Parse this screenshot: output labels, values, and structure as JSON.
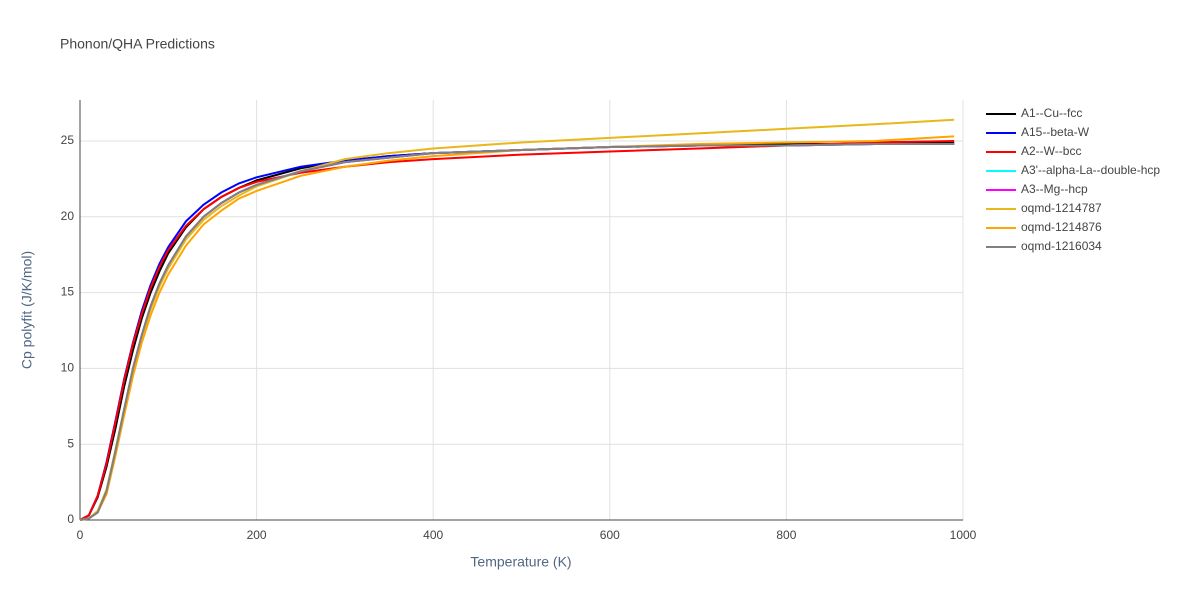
{
  "chart_data": {
    "type": "line",
    "title": "Phonon/QHA Predictions",
    "x_label": "Temperature (K)",
    "y_label": "Cp polyfit (J/K/mol)",
    "x": [
      0,
      10,
      20,
      30,
      40,
      50,
      60,
      70,
      80,
      90,
      100,
      120,
      140,
      160,
      180,
      200,
      250,
      300,
      350,
      400,
      500,
      600,
      700,
      800,
      900,
      990
    ],
    "xlim": [
      0,
      1000
    ],
    "xticks": [
      0,
      200,
      400,
      600,
      800,
      1000
    ],
    "ylim": [
      0,
      27.7
    ],
    "yticks": [
      0,
      5,
      10,
      15,
      20,
      25
    ],
    "grid": true,
    "series": [
      {
        "name": "A1--Cu--fcc",
        "color": "#000000",
        "values": [
          0,
          0.3,
          1.5,
          3.5,
          6.0,
          8.8,
          11.2,
          13.3,
          15.0,
          16.4,
          17.6,
          19.3,
          20.5,
          21.3,
          21.9,
          22.4,
          23.2,
          23.7,
          24.0,
          24.2,
          24.4,
          24.6,
          24.7,
          24.8,
          24.8,
          24.9
        ]
      },
      {
        "name": "A15--beta-W",
        "color": "#0000ff",
        "values": [
          0,
          0.3,
          1.6,
          3.8,
          6.5,
          9.3,
          11.7,
          13.8,
          15.5,
          16.9,
          18.0,
          19.7,
          20.8,
          21.6,
          22.2,
          22.6,
          23.3,
          23.7,
          24.0,
          24.2,
          24.4,
          24.6,
          24.7,
          24.7,
          24.8,
          24.8
        ]
      },
      {
        "name": "A2--W--bcc",
        "color": "#ff0000",
        "values": [
          0,
          0.3,
          1.6,
          3.7,
          6.4,
          9.2,
          11.6,
          13.6,
          15.3,
          16.7,
          17.8,
          19.4,
          20.5,
          21.3,
          21.9,
          22.3,
          22.9,
          23.3,
          23.6,
          23.8,
          24.1,
          24.3,
          24.5,
          24.7,
          24.9,
          25.0
        ]
      },
      {
        "name": "A3'--alpha-La--double-hcp",
        "color": "#00ffff",
        "values": [
          0,
          0.1,
          0.5,
          1.9,
          4.5,
          7.3,
          10.0,
          12.2,
          14.1,
          15.6,
          16.8,
          18.7,
          20.0,
          20.9,
          21.6,
          22.1,
          23.0,
          23.6,
          23.9,
          24.2,
          24.4,
          24.6,
          24.7,
          24.7,
          24.8,
          24.8
        ]
      },
      {
        "name": "A3--Mg--hcp",
        "color": "#ff00ff",
        "values": [
          0,
          0.1,
          0.5,
          1.9,
          4.5,
          7.3,
          10.0,
          12.2,
          14.1,
          15.6,
          16.8,
          18.7,
          20.0,
          20.9,
          21.6,
          22.1,
          23.0,
          23.6,
          23.9,
          24.2,
          24.4,
          24.6,
          24.7,
          24.7,
          24.8,
          24.8
        ]
      },
      {
        "name": "oqmd-1214787",
        "color": "#e8b81a",
        "values": [
          0,
          0.1,
          0.6,
          2.0,
          4.6,
          7.3,
          9.9,
          12.1,
          13.9,
          15.4,
          16.6,
          18.5,
          19.8,
          20.7,
          21.4,
          22.0,
          23.0,
          23.8,
          24.2,
          24.5,
          24.9,
          25.2,
          25.5,
          25.8,
          26.1,
          26.4
        ]
      },
      {
        "name": "oqmd-1214876",
        "color": "#ffa500",
        "values": [
          0,
          0.1,
          0.5,
          1.7,
          4.2,
          6.9,
          9.5,
          11.7,
          13.5,
          15.0,
          16.2,
          18.1,
          19.5,
          20.4,
          21.2,
          21.7,
          22.7,
          23.3,
          23.7,
          24.0,
          24.4,
          24.6,
          24.8,
          24.9,
          25.0,
          25.3
        ]
      },
      {
        "name": "oqmd-1216034",
        "color": "#808080",
        "values": [
          0,
          0.1,
          0.5,
          1.9,
          4.5,
          7.3,
          10.0,
          12.2,
          14.1,
          15.6,
          16.8,
          18.7,
          20.0,
          20.9,
          21.6,
          22.1,
          23.0,
          23.6,
          23.9,
          24.2,
          24.4,
          24.6,
          24.7,
          24.7,
          24.8,
          24.8
        ]
      }
    ]
  }
}
